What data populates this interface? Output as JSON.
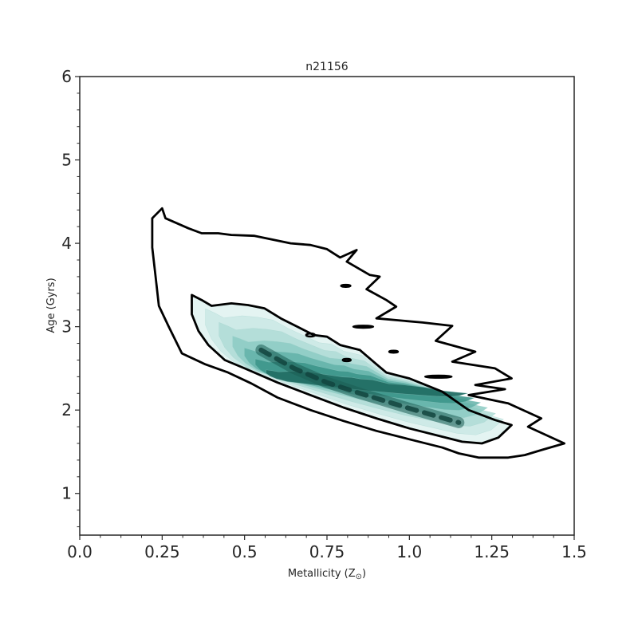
{
  "chart_data": {
    "type": "contour",
    "title": "n21156",
    "xlabel": "Metallicity (Z",
    "xlabel_symbol": "⊙",
    "xlabel_suffix": ")",
    "ylabel": "Age (Gyrs)",
    "xlim": [
      0.0,
      1.5
    ],
    "ylim": [
      0.5,
      6.0
    ],
    "xticks": [
      0.0,
      0.25,
      0.5,
      0.75,
      1.0,
      1.25,
      1.5
    ],
    "xtick_labels": [
      "0.0",
      "0.25",
      "0.5",
      "0.75",
      "1.0",
      "1.25",
      "1.5"
    ],
    "yticks": [
      1,
      2,
      3,
      4,
      5,
      6
    ],
    "ytick_labels": [
      "1",
      "2",
      "3",
      "4",
      "5",
      "6"
    ],
    "grid": false,
    "density_color": "#2a8a7e",
    "contour_color": "#000000",
    "ridge_line": [
      [
        0.55,
        2.72
      ],
      [
        0.65,
        2.5
      ],
      [
        0.75,
        2.33
      ],
      [
        0.85,
        2.2
      ],
      [
        1.0,
        2.02
      ],
      [
        1.15,
        1.85
      ]
    ],
    "contours": [
      {
        "name": "outer",
        "points": [
          [
            0.25,
            4.42
          ],
          [
            0.26,
            4.3
          ],
          [
            0.33,
            4.18
          ],
          [
            0.37,
            4.12
          ],
          [
            0.42,
            4.12
          ],
          [
            0.46,
            4.1
          ],
          [
            0.53,
            4.09
          ],
          [
            0.59,
            4.04
          ],
          [
            0.64,
            4.0
          ],
          [
            0.7,
            3.98
          ],
          [
            0.75,
            3.93
          ],
          [
            0.79,
            3.83
          ],
          [
            0.84,
            3.92
          ],
          [
            0.81,
            3.78
          ],
          [
            0.88,
            3.62
          ],
          [
            0.91,
            3.6
          ],
          [
            0.87,
            3.45
          ],
          [
            0.93,
            3.32
          ],
          [
            0.96,
            3.24
          ],
          [
            0.9,
            3.1
          ],
          [
            1.04,
            3.05
          ],
          [
            1.13,
            3.01
          ],
          [
            1.08,
            2.83
          ],
          [
            1.2,
            2.7
          ],
          [
            1.13,
            2.58
          ],
          [
            1.26,
            2.5
          ],
          [
            1.31,
            2.38
          ],
          [
            1.2,
            2.3
          ],
          [
            1.29,
            2.25
          ],
          [
            1.18,
            2.18
          ],
          [
            1.3,
            2.08
          ],
          [
            1.4,
            1.9
          ],
          [
            1.36,
            1.8
          ],
          [
            1.47,
            1.6
          ],
          [
            1.4,
            1.52
          ],
          [
            1.35,
            1.46
          ],
          [
            1.3,
            1.43
          ],
          [
            1.21,
            1.43
          ],
          [
            1.15,
            1.48
          ],
          [
            1.1,
            1.55
          ],
          [
            1.0,
            1.65
          ],
          [
            0.9,
            1.75
          ],
          [
            0.8,
            1.87
          ],
          [
            0.7,
            2.0
          ],
          [
            0.6,
            2.15
          ],
          [
            0.52,
            2.32
          ],
          [
            0.45,
            2.45
          ],
          [
            0.38,
            2.55
          ],
          [
            0.31,
            2.68
          ],
          [
            0.27,
            3.0
          ],
          [
            0.24,
            3.25
          ],
          [
            0.23,
            3.6
          ],
          [
            0.22,
            3.95
          ],
          [
            0.22,
            4.3
          ],
          [
            0.25,
            4.42
          ]
        ]
      },
      {
        "name": "inner",
        "points": [
          [
            0.34,
            3.38
          ],
          [
            0.37,
            3.32
          ],
          [
            0.4,
            3.25
          ],
          [
            0.46,
            3.28
          ],
          [
            0.51,
            3.26
          ],
          [
            0.56,
            3.22
          ],
          [
            0.61,
            3.1
          ],
          [
            0.66,
            3.0
          ],
          [
            0.71,
            2.9
          ],
          [
            0.75,
            2.88
          ],
          [
            0.79,
            2.78
          ],
          [
            0.85,
            2.72
          ],
          [
            0.9,
            2.55
          ],
          [
            0.93,
            2.45
          ],
          [
            1.0,
            2.38
          ],
          [
            1.05,
            2.3
          ],
          [
            1.1,
            2.22
          ],
          [
            1.18,
            2.0
          ],
          [
            1.26,
            1.88
          ],
          [
            1.31,
            1.82
          ],
          [
            1.27,
            1.67
          ],
          [
            1.22,
            1.6
          ],
          [
            1.16,
            1.62
          ],
          [
            1.1,
            1.68
          ],
          [
            1.0,
            1.78
          ],
          [
            0.9,
            1.9
          ],
          [
            0.8,
            2.03
          ],
          [
            0.7,
            2.18
          ],
          [
            0.6,
            2.33
          ],
          [
            0.5,
            2.5
          ],
          [
            0.44,
            2.6
          ],
          [
            0.39,
            2.78
          ],
          [
            0.36,
            2.95
          ],
          [
            0.34,
            3.15
          ],
          [
            0.34,
            3.38
          ]
        ]
      }
    ],
    "islands": [
      {
        "cx": 0.807,
        "cy": 3.49,
        "rx": 0.014,
        "ry": 0.012
      },
      {
        "cx": 0.7,
        "cy": 2.9,
        "rx": 0.013,
        "ry": 0.018
      },
      {
        "cx": 0.86,
        "cy": 3.0,
        "rx": 0.03,
        "ry": 0.012
      },
      {
        "cx": 0.952,
        "cy": 2.7,
        "rx": 0.013,
        "ry": 0.011
      },
      {
        "cx": 0.81,
        "cy": 2.6,
        "rx": 0.012,
        "ry": 0.013
      },
      {
        "cx": 1.088,
        "cy": 2.4,
        "rx": 0.04,
        "ry": 0.012
      }
    ]
  }
}
